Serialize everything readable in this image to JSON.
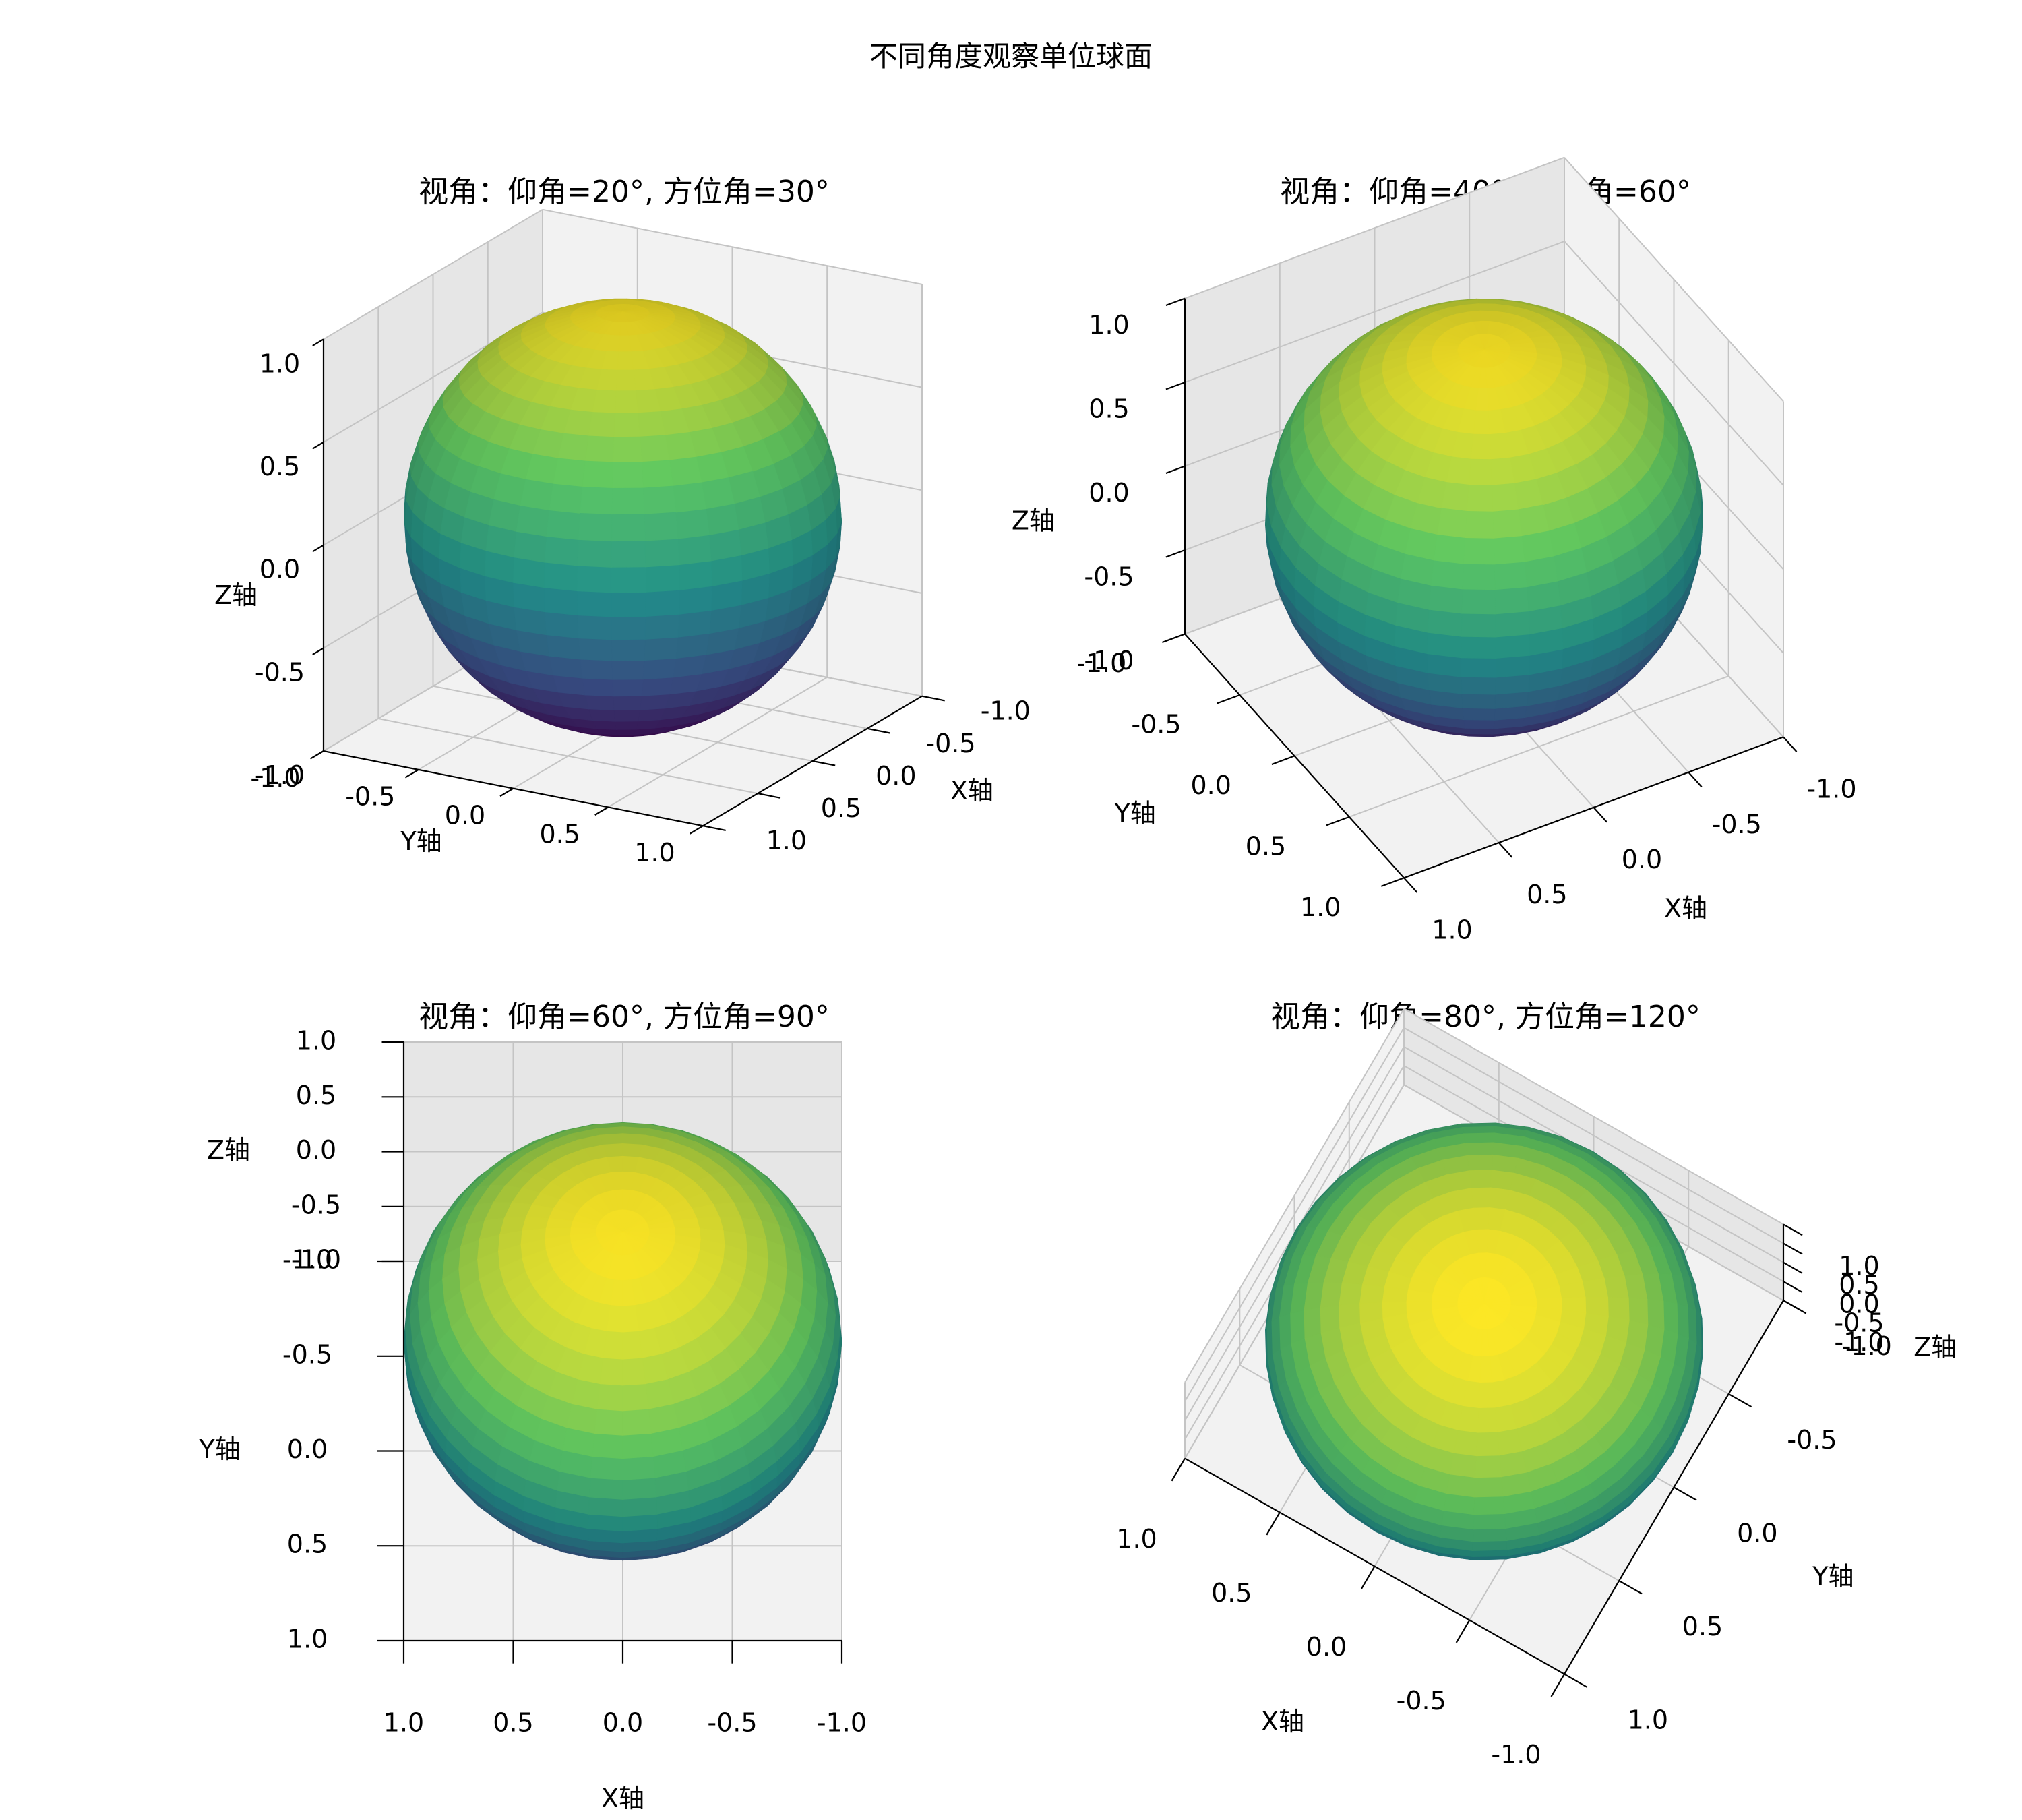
{
  "figure": {
    "title": "不同角度观察单位球面"
  },
  "chart_data": [
    {
      "type": "surface3d",
      "surface": "unit-sphere",
      "colormap": "viridis",
      "title": "视角：仰角=20°, 方位角=30°",
      "view": {
        "elev": 20,
        "azim": 30
      },
      "xlabel": "X轴",
      "ylabel": "Y轴",
      "zlabel": "Z轴",
      "xlim": [
        -1.0,
        1.0
      ],
      "ylim": [
        -1.0,
        1.0
      ],
      "zlim": [
        -1.0,
        1.0
      ],
      "ticks": [
        "-1.0",
        "-0.5",
        "0.0",
        "0.5",
        "1.0"
      ],
      "grid": true
    },
    {
      "type": "surface3d",
      "surface": "unit-sphere",
      "colormap": "viridis",
      "title": "视角：仰角=40°, 方位角=60°",
      "view": {
        "elev": 40,
        "azim": 60
      },
      "xlabel": "X轴",
      "ylabel": "Y轴",
      "zlabel": "Z轴",
      "xlim": [
        -1.0,
        1.0
      ],
      "ylim": [
        -1.0,
        1.0
      ],
      "zlim": [
        -1.0,
        1.0
      ],
      "ticks": [
        "-1.0",
        "-0.5",
        "0.0",
        "0.5",
        "1.0"
      ],
      "grid": true
    },
    {
      "type": "surface3d",
      "surface": "unit-sphere",
      "colormap": "viridis",
      "title": "视角：仰角=60°, 方位角=90°",
      "view": {
        "elev": 60,
        "azim": 90
      },
      "xlabel": "X轴",
      "ylabel": "Y轴",
      "zlabel": "Z轴",
      "xlim": [
        -1.0,
        1.0
      ],
      "ylim": [
        -1.0,
        1.0
      ],
      "zlim": [
        -1.0,
        1.0
      ],
      "ticks": [
        "-1.0",
        "-0.5",
        "0.0",
        "0.5",
        "1.0"
      ],
      "grid": true
    },
    {
      "type": "surface3d",
      "surface": "unit-sphere",
      "colormap": "viridis",
      "title": "视角：仰角=80°, 方位角=120°",
      "view": {
        "elev": 80,
        "azim": 120
      },
      "xlabel": "X轴",
      "ylabel": "Y轴",
      "zlabel": "Z轴",
      "xlim": [
        -1.0,
        1.0
      ],
      "ylim": [
        -1.0,
        1.0
      ],
      "zlim": [
        -1.0,
        1.0
      ],
      "ticks": [
        "-1.0",
        "-0.5",
        "0.0",
        "0.5",
        "1.0"
      ],
      "grid": true
    }
  ],
  "colors": {
    "viridis": [
      "#440154",
      "#3b528b",
      "#21918c",
      "#5ec962",
      "#fde725"
    ],
    "pane": "#f2f2f2",
    "pane_side": "#e6e6e6",
    "grid": "#c4c4c4",
    "axis": "#000000"
  }
}
